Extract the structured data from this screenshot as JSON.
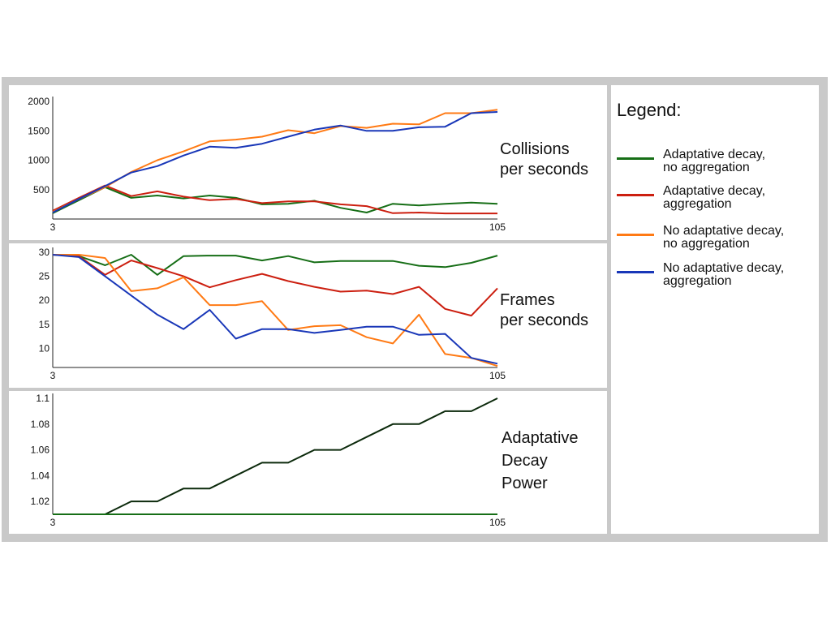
{
  "colors": {
    "adaptive_no_agg": "#166e16",
    "adaptive_agg": "#cc1f10",
    "no_adaptive_no_agg": "#ff7a14",
    "no_adaptive_agg": "#1937b8",
    "decay_line": "#0c2a0c",
    "frame": "#c9c9c9"
  },
  "legend": {
    "title": "Legend:",
    "items": [
      {
        "line1": "Adaptative decay,",
        "line2": "no aggregation",
        "color": "#166e16"
      },
      {
        "line1": "Adaptative decay,",
        "line2": "aggregation",
        "color": "#cc1f10"
      },
      {
        "line1": "No adaptative decay,",
        "line2": "no aggregation",
        "color": "#ff7a14"
      },
      {
        "line1": "No adaptative decay,",
        "line2": "aggregation",
        "color": "#1937b8"
      }
    ]
  },
  "chart_data": [
    {
      "type": "line",
      "title_lines": [
        "Collisions",
        "per seconds"
      ],
      "x_start_label": "3",
      "x_end_label": "105",
      "xlim": [
        3,
        105
      ],
      "ylim": [
        0,
        2000
      ],
      "yticks": [
        500,
        1000,
        1500,
        2000
      ],
      "series": [
        {
          "name": "Adaptative decay, no aggregation",
          "color": "#166e16",
          "values": [
            100,
            320,
            540,
            360,
            400,
            350,
            400,
            360,
            250,
            260,
            310,
            190,
            110,
            260,
            230,
            260,
            280,
            260
          ]
        },
        {
          "name": "Adaptative decay, aggregation",
          "color": "#cc1f10",
          "values": [
            140,
            360,
            570,
            390,
            470,
            380,
            320,
            340,
            270,
            300,
            300,
            250,
            220,
            100,
            110,
            95,
            95,
            95
          ]
        },
        {
          "name": "No adaptative decay, no aggregation",
          "color": "#ff7a14",
          "values": [
            120,
            340,
            540,
            800,
            1000,
            1150,
            1320,
            1350,
            1400,
            1510,
            1460,
            1580,
            1550,
            1620,
            1610,
            1800,
            1800,
            1860
          ]
        },
        {
          "name": "No adaptative decay, aggregation",
          "color": "#1937b8",
          "values": [
            110,
            340,
            560,
            790,
            900,
            1080,
            1230,
            1210,
            1280,
            1400,
            1520,
            1590,
            1500,
            1500,
            1560,
            1570,
            1800,
            1820
          ]
        }
      ]
    },
    {
      "type": "line",
      "title_lines": [
        "Frames",
        "per seconds"
      ],
      "x_start_label": "3",
      "x_end_label": "105",
      "xlim": [
        3,
        105
      ],
      "ylim": [
        6,
        30
      ],
      "yticks": [
        10,
        15,
        20,
        25,
        30
      ],
      "series": [
        {
          "name": "Adaptative decay, no aggregation",
          "color": "#166e16",
          "values": [
            29.5,
            29.2,
            27.3,
            29.5,
            25.3,
            29.2,
            29.3,
            29.3,
            28.3,
            29.2,
            27.9,
            28.2,
            28.2,
            28.2,
            27.2,
            26.9,
            27.8,
            29.3
          ]
        },
        {
          "name": "Adaptative decay, aggregation",
          "color": "#cc1f10",
          "values": [
            29.5,
            29.2,
            25.3,
            28.3,
            26.7,
            25.0,
            22.7,
            24.2,
            25.5,
            24.0,
            22.8,
            21.8,
            22.0,
            21.3,
            22.8,
            18.2,
            16.8,
            22.5
          ]
        },
        {
          "name": "No adaptative decay, no aggregation",
          "color": "#ff7a14",
          "values": [
            29.5,
            29.5,
            28.8,
            21.9,
            22.5,
            24.8,
            19.0,
            19.0,
            19.8,
            13.8,
            14.6,
            14.8,
            12.3,
            11.0,
            17.0,
            8.8,
            8.0,
            6.3
          ]
        },
        {
          "name": "No adaptative decay, aggregation",
          "color": "#1937b8",
          "values": [
            29.5,
            29.0,
            25.0,
            21.0,
            17.0,
            14.0,
            18.0,
            12.0,
            14.0,
            14.0,
            13.2,
            13.8,
            14.5,
            14.5,
            12.8,
            13.0,
            8.0,
            6.8
          ]
        }
      ]
    },
    {
      "type": "line",
      "title_lines": [
        "Adaptative",
        "Decay",
        "Power"
      ],
      "x_start_label": "3",
      "x_end_label": "105",
      "xlim": [
        3,
        105
      ],
      "ylim": [
        1.01,
        1.1
      ],
      "yticks": [
        1.02,
        1.04,
        1.06,
        1.08,
        1.1
      ],
      "ytick_labels": [
        "1.02",
        "1.04",
        "1.06",
        "1.08",
        "1.1"
      ],
      "series": [
        {
          "name": "Adaptative decay",
          "color": "#0c2a0c",
          "values": [
            1.01,
            1.01,
            1.01,
            1.02,
            1.02,
            1.03,
            1.03,
            1.04,
            1.05,
            1.05,
            1.06,
            1.06,
            1.07,
            1.08,
            1.08,
            1.09,
            1.09,
            1.1
          ]
        },
        {
          "name": "No adaptative decay",
          "color": "#166e16",
          "values": [
            1.01,
            1.01,
            1.01,
            1.01,
            1.01,
            1.01,
            1.01,
            1.01,
            1.01,
            1.01,
            1.01,
            1.01,
            1.01,
            1.01,
            1.01,
            1.01,
            1.01,
            1.01
          ]
        }
      ]
    }
  ]
}
